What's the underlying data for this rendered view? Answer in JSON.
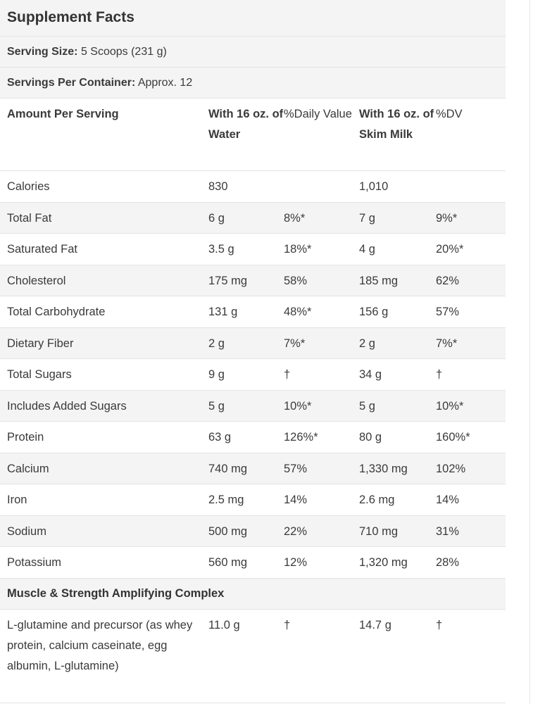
{
  "title": "Supplement Facts",
  "serving_size": {
    "label": "Serving Size:",
    "value": "5 Scoops (231 g)"
  },
  "servings_per_container": {
    "label": "Servings Per Container:",
    "value": "Approx. 12"
  },
  "header": {
    "col1": "Amount Per Serving",
    "col2": "With 16 oz. of Water",
    "col3": "%Daily Value",
    "col4": "With 16 oz. of Skim Milk",
    "col5": "%DV"
  },
  "rows": [
    {
      "name": "Calories",
      "water": "830",
      "dv1": "",
      "milk": "1,010",
      "dv2": ""
    },
    {
      "name": "Total Fat",
      "water": "6 g",
      "dv1": "8%*",
      "milk": "7 g",
      "dv2": "9%*"
    },
    {
      "name": "Saturated Fat",
      "water": "3.5 g",
      "dv1": "18%*",
      "milk": "4 g",
      "dv2": "20%*"
    },
    {
      "name": "Cholesterol",
      "water": "175 mg",
      "dv1": "58%",
      "milk": "185 mg",
      "dv2": "62%"
    },
    {
      "name": "Total Carbohydrate",
      "water": "131 g",
      "dv1": "48%*",
      "milk": "156 g",
      "dv2": "57%"
    },
    {
      "name": "Dietary Fiber",
      "water": "2 g",
      "dv1": "7%*",
      "milk": "2 g",
      "dv2": "7%*"
    },
    {
      "name": "Total Sugars",
      "water": "9 g",
      "dv1": "†",
      "milk": "34 g",
      "dv2": "†"
    },
    {
      "name": "Includes Added Sugars",
      "water": "5 g",
      "dv1": "10%*",
      "milk": "5 g",
      "dv2": "10%*"
    },
    {
      "name": "Protein",
      "water": "63 g",
      "dv1": "126%*",
      "milk": "80 g",
      "dv2": "160%*"
    },
    {
      "name": "Calcium",
      "water": "740 mg",
      "dv1": "57%",
      "milk": "1,330 mg",
      "dv2": "102%"
    },
    {
      "name": "Iron",
      "water": "2.5 mg",
      "dv1": "14%",
      "milk": "2.6 mg",
      "dv2": "14%"
    },
    {
      "name": "Sodium",
      "water": "500 mg",
      "dv1": "22%",
      "milk": "710 mg",
      "dv2": "31%"
    },
    {
      "name": "Potassium",
      "water": "560 mg",
      "dv1": "12%",
      "milk": "1,320 mg",
      "dv2": "28%"
    }
  ],
  "complex_title": "Muscle & Strength Amplifying Complex",
  "complex_rows": [
    {
      "name": "L-glutamine and precursor (as whey protein, calcium caseinate, egg albumin, L-glutamine)",
      "water": "11.0 g",
      "dv1": "†",
      "milk": "14.7 g",
      "dv2": "†"
    }
  ]
}
